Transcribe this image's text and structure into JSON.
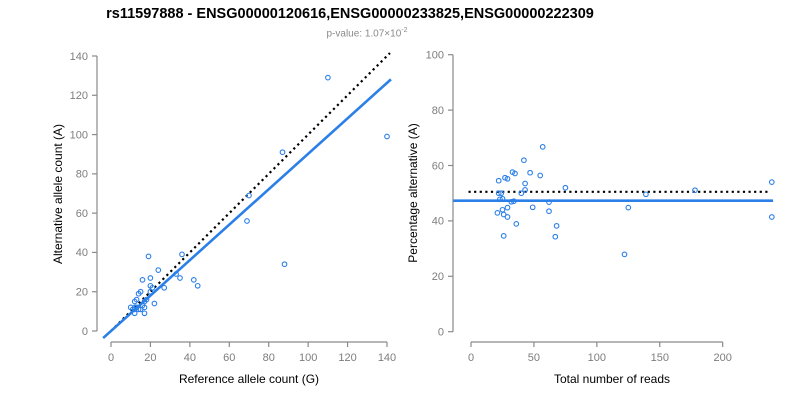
{
  "title": "rs11597888 - ENSG00000120616,ENSG00000233825,ENSG00000222309",
  "subtitle": {
    "prefix": "p-value: 1.07×10",
    "exponent": "-2"
  },
  "colors": {
    "background": "#ffffff",
    "title": "#000000",
    "subtitle": "#8a8a8a",
    "points": "#2b7fe8",
    "fit_line": "#2b7fe8",
    "identity_line": "#000000",
    "axis": "#8a8a8a",
    "tick_label": "#7d7d7d",
    "axis_title": "#000000"
  },
  "chart_data": [
    {
      "type": "scatter",
      "panel": "left",
      "xlabel": "Reference allele count (G)",
      "ylabel": "Alternative allele count (A)",
      "xlim": [
        0,
        140
      ],
      "ylim": [
        0,
        140
      ],
      "xticks": [
        0,
        20,
        40,
        60,
        80,
        100,
        120,
        140
      ],
      "yticks": [
        0,
        20,
        40,
        60,
        80,
        100,
        120,
        140
      ],
      "grid": false,
      "legend": null,
      "marker": "open-circle",
      "points": [
        [
          110,
          129
        ],
        [
          140,
          99
        ],
        [
          87,
          91
        ],
        [
          70,
          69
        ],
        [
          69,
          56
        ],
        [
          88,
          34
        ],
        [
          19,
          38
        ],
        [
          36,
          39
        ],
        [
          24,
          31
        ],
        [
          20,
          27
        ],
        [
          16,
          26
        ],
        [
          33,
          29
        ],
        [
          35,
          27
        ],
        [
          42,
          26
        ],
        [
          44,
          23
        ],
        [
          27,
          22
        ],
        [
          20,
          23
        ],
        [
          21,
          22
        ],
        [
          20,
          20
        ],
        [
          14,
          19
        ],
        [
          15,
          20
        ],
        [
          18,
          16
        ],
        [
          13,
          16
        ],
        [
          17,
          15
        ],
        [
          22,
          14
        ],
        [
          12,
          15
        ],
        [
          17,
          12
        ],
        [
          16,
          13
        ],
        [
          10,
          12
        ],
        [
          11,
          11
        ],
        [
          12,
          12
        ],
        [
          12,
          11
        ],
        [
          13,
          12
        ],
        [
          14,
          11
        ],
        [
          15,
          11
        ],
        [
          12,
          9
        ],
        [
          17,
          9
        ]
      ],
      "lines": [
        {
          "name": "identity-line",
          "equation": "y = x",
          "style": "dotted",
          "color": "#000000",
          "from": [
            0,
            0
          ],
          "to": [
            141.5,
            141.5
          ]
        },
        {
          "name": "fit-line",
          "equation": "y = 0.9x",
          "style": "solid",
          "color": "#2b7fe8",
          "from": [
            -4,
            -3.6
          ],
          "to": [
            142,
            128.1
          ]
        }
      ]
    },
    {
      "type": "scatter",
      "panel": "right",
      "xlabel": "Total number of reads",
      "ylabel": "Percentage alternative (A)",
      "xlim": [
        0,
        240
      ],
      "ylim": [
        0,
        100
      ],
      "xticks": [
        0,
        50,
        100,
        150,
        200
      ],
      "yticks": [
        0,
        20,
        40,
        60,
        80,
        100
      ],
      "grid": false,
      "legend": null,
      "marker": "open-circle",
      "points": [
        [
          239,
          54.0
        ],
        [
          239,
          41.4
        ],
        [
          178,
          51.1
        ],
        [
          139,
          49.6
        ],
        [
          125,
          44.8
        ],
        [
          122,
          27.9
        ],
        [
          57,
          66.7
        ],
        [
          75,
          52.0
        ],
        [
          55,
          56.4
        ],
        [
          47,
          57.4
        ],
        [
          42,
          61.9
        ],
        [
          62,
          46.8
        ],
        [
          62,
          43.5
        ],
        [
          68,
          38.2
        ],
        [
          67,
          34.3
        ],
        [
          49,
          44.9
        ],
        [
          43,
          53.5
        ],
        [
          43,
          51.2
        ],
        [
          40,
          50.0
        ],
        [
          33,
          57.6
        ],
        [
          35,
          57.1
        ],
        [
          34,
          47.1
        ],
        [
          29,
          55.2
        ],
        [
          32,
          46.9
        ],
        [
          36,
          38.9
        ],
        [
          27,
          55.6
        ],
        [
          29,
          41.4
        ],
        [
          29,
          44.8
        ],
        [
          22,
          54.5
        ],
        [
          22,
          50.0
        ],
        [
          24,
          50.0
        ],
        [
          23,
          47.8
        ],
        [
          25,
          48.0
        ],
        [
          25,
          44.0
        ],
        [
          26,
          42.3
        ],
        [
          21,
          42.9
        ],
        [
          26,
          34.6
        ]
      ],
      "lines": [
        {
          "name": "expected-50pct-line",
          "equation": "y = 50",
          "style": "dotted",
          "color": "#000000",
          "from": [
            -2,
            50.5
          ],
          "to": [
            236,
            50.5
          ]
        },
        {
          "name": "mean-pct-line",
          "equation": "y = 47.3",
          "style": "solid",
          "color": "#2b7fe8",
          "from": [
            -14,
            47.3
          ],
          "to": [
            240,
            47.3
          ]
        }
      ]
    }
  ]
}
